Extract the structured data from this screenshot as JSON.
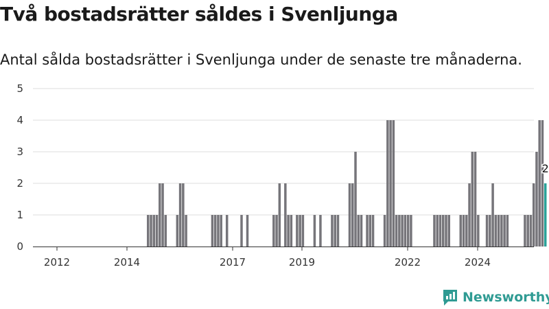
{
  "title": "Två bostadsrätter såldes i Svenljunga",
  "subtitle": "Antal sålda bostadsrätter i Svenljunga under de senaste tre månaderna.",
  "brand": {
    "name": "Newsworthy",
    "icon": "newsworthy-logo-icon",
    "color": "#2f9b93"
  },
  "colors": {
    "bar": "#76757a",
    "highlight": "#2aa198",
    "grid": "#dddddd"
  },
  "chart_data": {
    "type": "bar",
    "x_start": "2011-01",
    "x_unit": "month",
    "ylim": [
      0,
      5
    ],
    "y_ticks": [
      0,
      1,
      2,
      3,
      4,
      5
    ],
    "x_ticks": [
      "2012",
      "2014",
      "2017",
      "2019",
      "2022",
      "2024"
    ],
    "grid": true,
    "highlight_label": "2",
    "bars": [
      {
        "x": "2014-04",
        "y": 1
      },
      {
        "x": "2014-05",
        "y": 1
      },
      {
        "x": "2014-06",
        "y": 1
      },
      {
        "x": "2014-07",
        "y": 1
      },
      {
        "x": "2014-08",
        "y": 2
      },
      {
        "x": "2014-09",
        "y": 2
      },
      {
        "x": "2014-10",
        "y": 1
      },
      {
        "x": "2015-02",
        "y": 1
      },
      {
        "x": "2015-03",
        "y": 2
      },
      {
        "x": "2015-04",
        "y": 2
      },
      {
        "x": "2015-05",
        "y": 1
      },
      {
        "x": "2016-02",
        "y": 1
      },
      {
        "x": "2016-03",
        "y": 1
      },
      {
        "x": "2016-04",
        "y": 1
      },
      {
        "x": "2016-05",
        "y": 1
      },
      {
        "x": "2016-07",
        "y": 1
      },
      {
        "x": "2016-12",
        "y": 1
      },
      {
        "x": "2017-02",
        "y": 1
      },
      {
        "x": "2017-11",
        "y": 1
      },
      {
        "x": "2017-12",
        "y": 1
      },
      {
        "x": "2018-01",
        "y": 2
      },
      {
        "x": "2018-03",
        "y": 2
      },
      {
        "x": "2018-04",
        "y": 1
      },
      {
        "x": "2018-05",
        "y": 1
      },
      {
        "x": "2018-07",
        "y": 1
      },
      {
        "x": "2018-08",
        "y": 1
      },
      {
        "x": "2018-09",
        "y": 1
      },
      {
        "x": "2019-01",
        "y": 1
      },
      {
        "x": "2019-03",
        "y": 1
      },
      {
        "x": "2019-07",
        "y": 1
      },
      {
        "x": "2019-08",
        "y": 1
      },
      {
        "x": "2019-09",
        "y": 1
      },
      {
        "x": "2020-01",
        "y": 2
      },
      {
        "x": "2020-02",
        "y": 2
      },
      {
        "x": "2020-03",
        "y": 3
      },
      {
        "x": "2020-04",
        "y": 1
      },
      {
        "x": "2020-05",
        "y": 1
      },
      {
        "x": "2020-07",
        "y": 1
      },
      {
        "x": "2020-08",
        "y": 1
      },
      {
        "x": "2020-09",
        "y": 1
      },
      {
        "x": "2021-01",
        "y": 1
      },
      {
        "x": "2021-02",
        "y": 4
      },
      {
        "x": "2021-03",
        "y": 4
      },
      {
        "x": "2021-04",
        "y": 4
      },
      {
        "x": "2021-05",
        "y": 1
      },
      {
        "x": "2021-06",
        "y": 1
      },
      {
        "x": "2021-07",
        "y": 1
      },
      {
        "x": "2021-08",
        "y": 1
      },
      {
        "x": "2021-09",
        "y": 1
      },
      {
        "x": "2021-10",
        "y": 1
      },
      {
        "x": "2022-06",
        "y": 1
      },
      {
        "x": "2022-07",
        "y": 1
      },
      {
        "x": "2022-08",
        "y": 1
      },
      {
        "x": "2022-09",
        "y": 1
      },
      {
        "x": "2022-10",
        "y": 1
      },
      {
        "x": "2022-11",
        "y": 1
      },
      {
        "x": "2023-03",
        "y": 1
      },
      {
        "x": "2023-04",
        "y": 1
      },
      {
        "x": "2023-05",
        "y": 1
      },
      {
        "x": "2023-06",
        "y": 2
      },
      {
        "x": "2023-07",
        "y": 3
      },
      {
        "x": "2023-08",
        "y": 3
      },
      {
        "x": "2023-09",
        "y": 1
      },
      {
        "x": "2023-12",
        "y": 1
      },
      {
        "x": "2024-01",
        "y": 1
      },
      {
        "x": "2024-02",
        "y": 2
      },
      {
        "x": "2024-03",
        "y": 1
      },
      {
        "x": "2024-04",
        "y": 1
      },
      {
        "x": "2024-05",
        "y": 1
      },
      {
        "x": "2024-06",
        "y": 1
      },
      {
        "x": "2024-07",
        "y": 1
      },
      {
        "x": "2025-01",
        "y": 1
      },
      {
        "x": "2025-02",
        "y": 1
      },
      {
        "x": "2025-03",
        "y": 1
      },
      {
        "x": "2025-04",
        "y": 2
      },
      {
        "x": "2025-05",
        "y": 3
      },
      {
        "x": "2025-06",
        "y": 4
      },
      {
        "x": "2025-07",
        "y": 4
      },
      {
        "x": "2025-08",
        "y": 2,
        "highlight": true
      }
    ]
  }
}
